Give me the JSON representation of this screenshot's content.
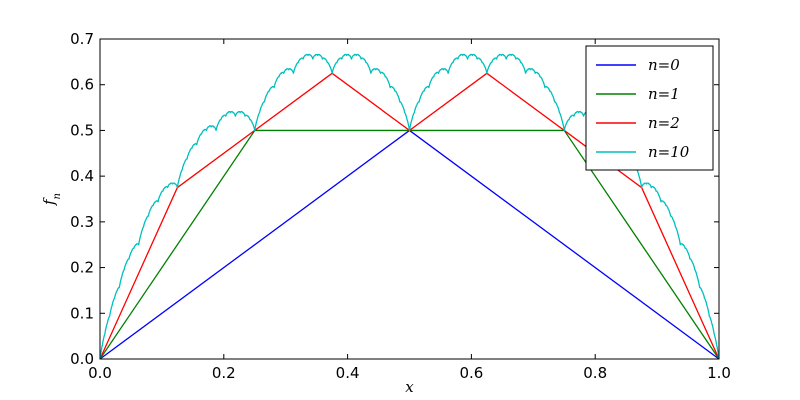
{
  "chart_data": {
    "type": "line",
    "xlabel": "x",
    "ylabel": "f_n",
    "xlim": [
      0.0,
      1.0
    ],
    "ylim": [
      0.0,
      0.7
    ],
    "xticks": [
      "0.0",
      "0.2",
      "0.4",
      "0.6",
      "0.8",
      "1.0"
    ],
    "yticks": [
      "0.0",
      "0.1",
      "0.2",
      "0.3",
      "0.4",
      "0.5",
      "0.6",
      "0.7"
    ],
    "grid": false,
    "legend_position": "top-right",
    "series": [
      {
        "name": "n=0",
        "color": "#0000ff",
        "x": [
          0,
          0.5,
          1
        ],
        "y": [
          0,
          0.5,
          0
        ]
      },
      {
        "name": "n=1",
        "color": "#008000",
        "x": [
          0,
          0.25,
          0.5,
          0.75,
          1
        ],
        "y": [
          0,
          0.5,
          0.5,
          0.5,
          0
        ]
      },
      {
        "name": "n=2",
        "color": "#ff0000",
        "x": [
          0,
          0.125,
          0.25,
          0.375,
          0.5,
          0.625,
          0.75,
          0.875,
          1
        ],
        "y": [
          0,
          0.375,
          0.5,
          0.625,
          0.5,
          0.625,
          0.5,
          0.375,
          0
        ]
      },
      {
        "name": "n=10",
        "color": "#00bfbf",
        "formula": "sum_{k=0}^{10} s(2^k x)/2^k, s(x)=distance to nearest integer",
        "samples": 1025
      }
    ]
  }
}
